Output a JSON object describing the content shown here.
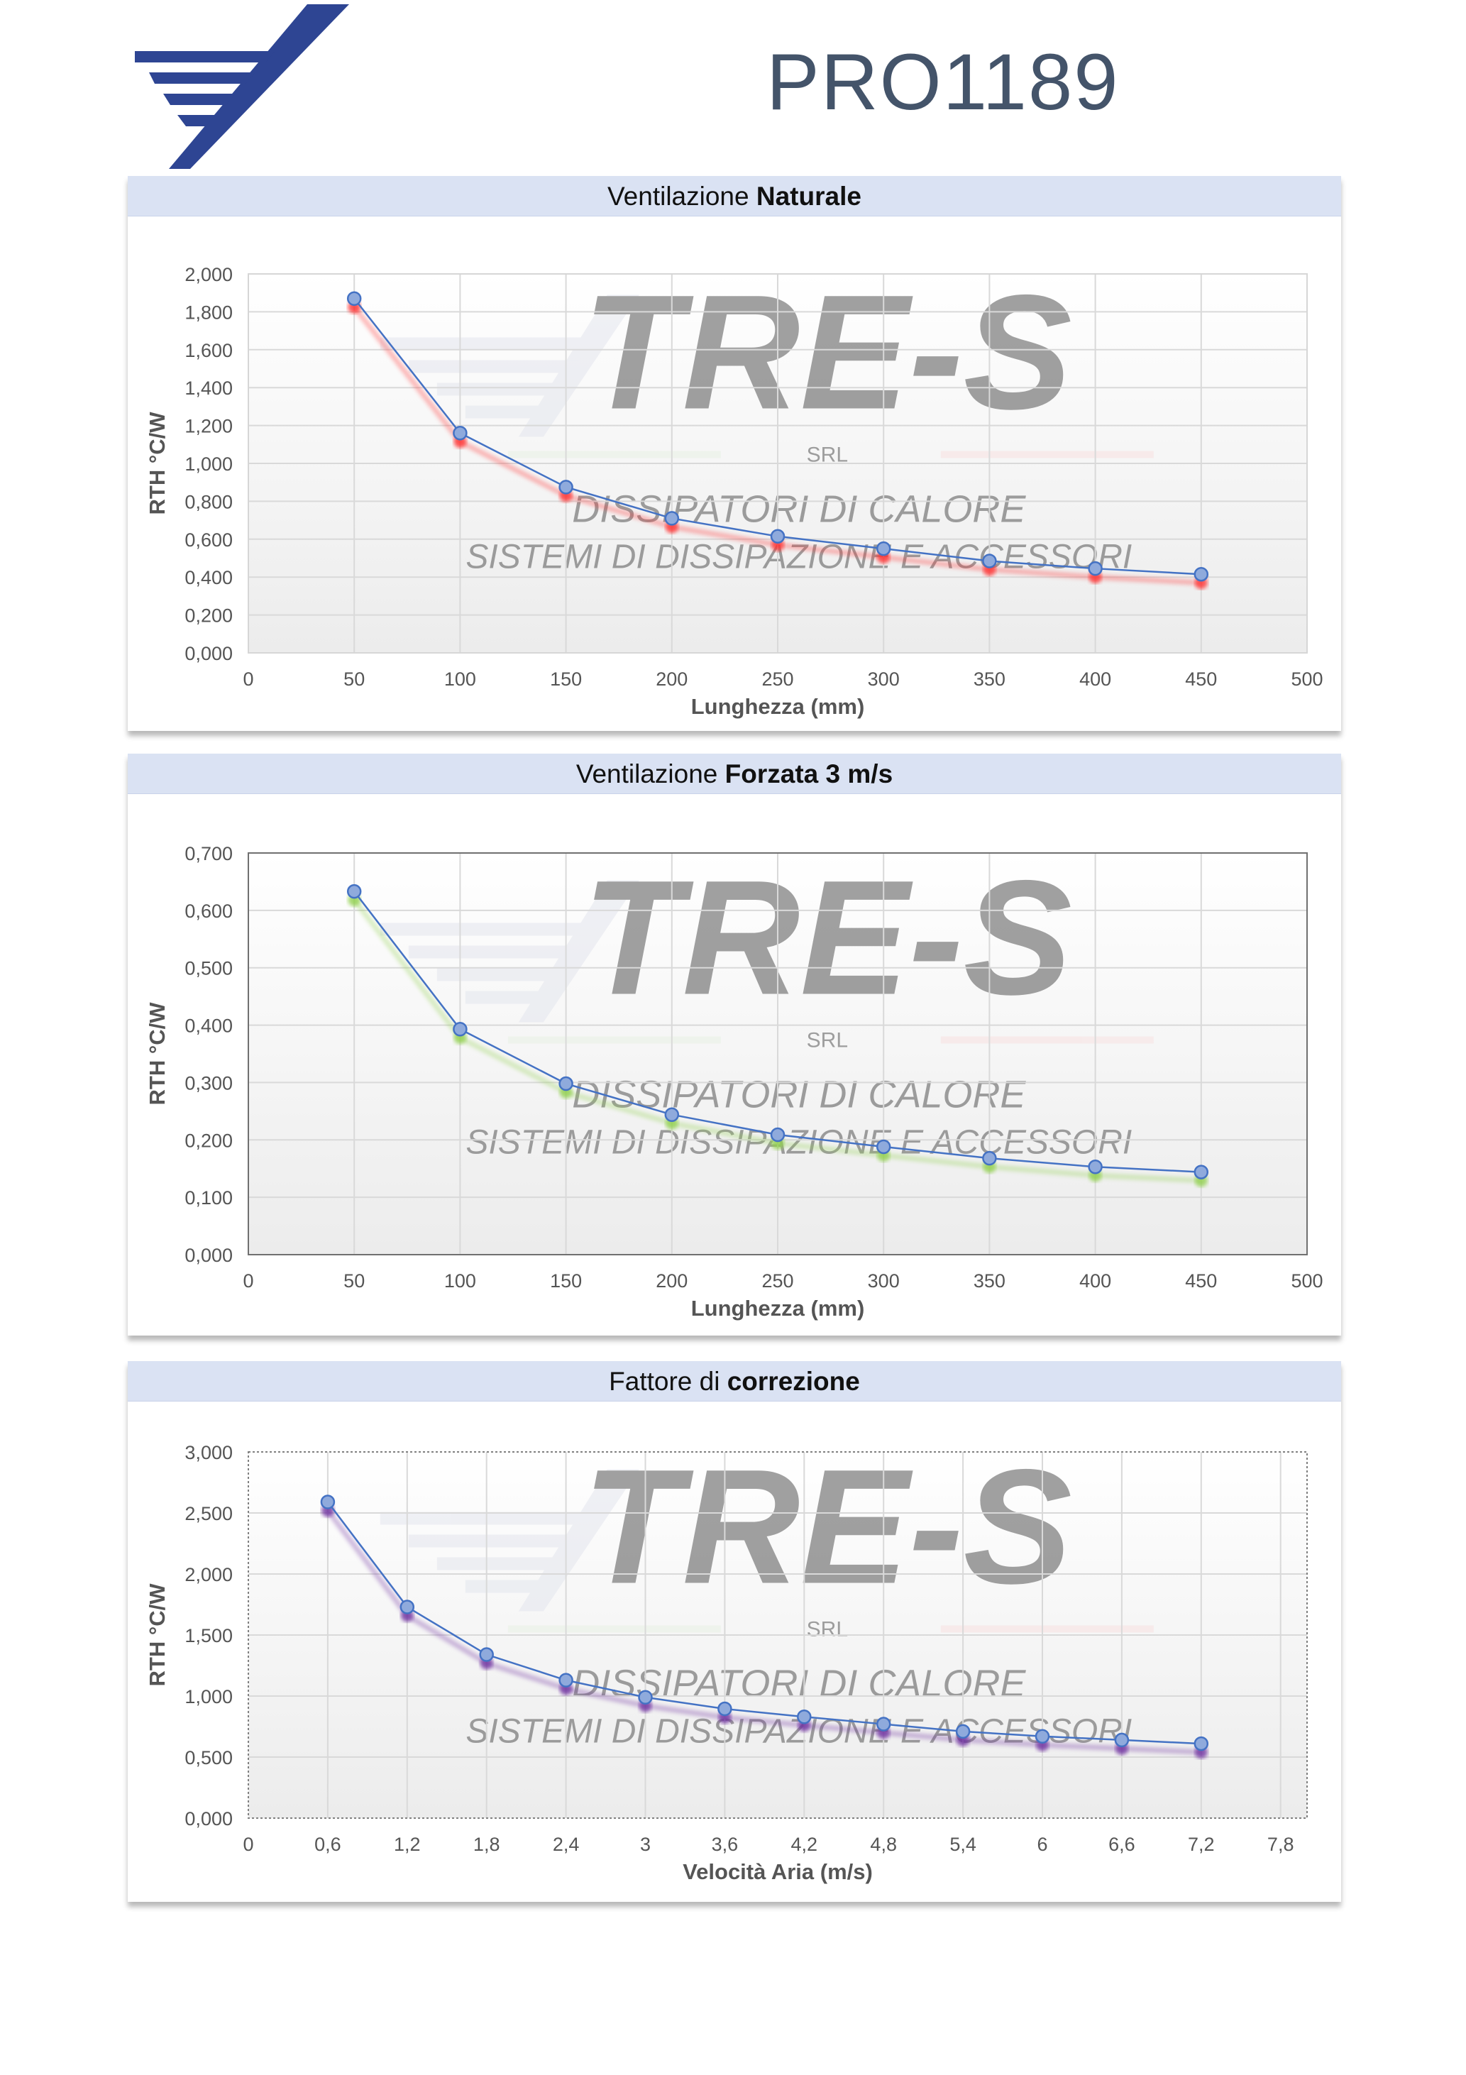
{
  "header": {
    "product_code": "PRO1189",
    "logo": "tre-s-wing-logo"
  },
  "watermark": {
    "brand": "TRE-S",
    "srl": "SRL",
    "line1": "DISSIPATORI DI CALORE",
    "line2": "SISTEMI DI DISSIPAZIONE E ACCESSORI"
  },
  "colors": {
    "title_bar": "#dae2f3",
    "line": "#4472c4",
    "marker": "#8faadc",
    "shadow_natural": "#ff3030",
    "shadow_forced": "#92d050",
    "shadow_correction": "#7030a0"
  },
  "chart_data": [
    {
      "type": "line",
      "title_normal": "Ventilazione ",
      "title_bold": "Naturale",
      "xlabel": "Lunghezza (mm)",
      "ylabel": "RTH °C/W",
      "xlim": [
        0,
        500
      ],
      "ylim": [
        0,
        2.0
      ],
      "x_ticks": [
        "0",
        "50",
        "100",
        "150",
        "200",
        "250",
        "300",
        "350",
        "400",
        "450",
        "500"
      ],
      "y_ticks": [
        "0,000",
        "0,200",
        "0,400",
        "0,600",
        "0,800",
        "1,000",
        "1,200",
        "1,400",
        "1,600",
        "1,800",
        "2,000"
      ],
      "grid": true,
      "x": [
        50,
        100,
        150,
        200,
        250,
        300,
        350,
        400,
        450
      ],
      "y": [
        1.87,
        1.16,
        0.875,
        0.71,
        0.615,
        0.55,
        0.485,
        0.445,
        0.415
      ]
    },
    {
      "type": "line",
      "title_normal": "Ventilazione ",
      "title_bold": "Forzata 3 m/s",
      "xlabel": "Lunghezza (mm)",
      "ylabel": "RTH °C/W",
      "xlim": [
        0,
        500
      ],
      "ylim": [
        0,
        0.7
      ],
      "x_ticks": [
        "0",
        "50",
        "100",
        "150",
        "200",
        "250",
        "300",
        "350",
        "400",
        "450",
        "500"
      ],
      "y_ticks": [
        "0,000",
        "0,100",
        "0,200",
        "0,300",
        "0,400",
        "0,500",
        "0,600",
        "0,700"
      ],
      "grid": true,
      "x": [
        50,
        100,
        150,
        200,
        250,
        300,
        350,
        400,
        450
      ],
      "y": [
        0.633,
        0.393,
        0.298,
        0.244,
        0.209,
        0.188,
        0.168,
        0.153,
        0.144
      ]
    },
    {
      "type": "line",
      "title_normal": "Fattore di ",
      "title_bold": "correzione",
      "xlabel": "Velocità Aria (m/s)",
      "ylabel": "RTH °C/W",
      "xlim": [
        0,
        8.0
      ],
      "ylim": [
        0,
        3.0
      ],
      "x_ticks": [
        "0",
        "0,6",
        "1,2",
        "1,8",
        "2,4",
        "3",
        "3,6",
        "4,2",
        "4,8",
        "5,4",
        "6",
        "6,6",
        "7,2",
        "7,8"
      ],
      "y_ticks": [
        "0,000",
        "0,500",
        "1,000",
        "1,500",
        "2,000",
        "2,500",
        "3,000"
      ],
      "grid": true,
      "x": [
        0.6,
        1.2,
        1.8,
        2.4,
        3.0,
        3.6,
        4.2,
        4.8,
        5.4,
        6.0,
        6.6,
        7.2
      ],
      "y": [
        2.59,
        1.73,
        1.34,
        1.13,
        0.99,
        0.895,
        0.83,
        0.77,
        0.71,
        0.67,
        0.64,
        0.61
      ]
    }
  ]
}
